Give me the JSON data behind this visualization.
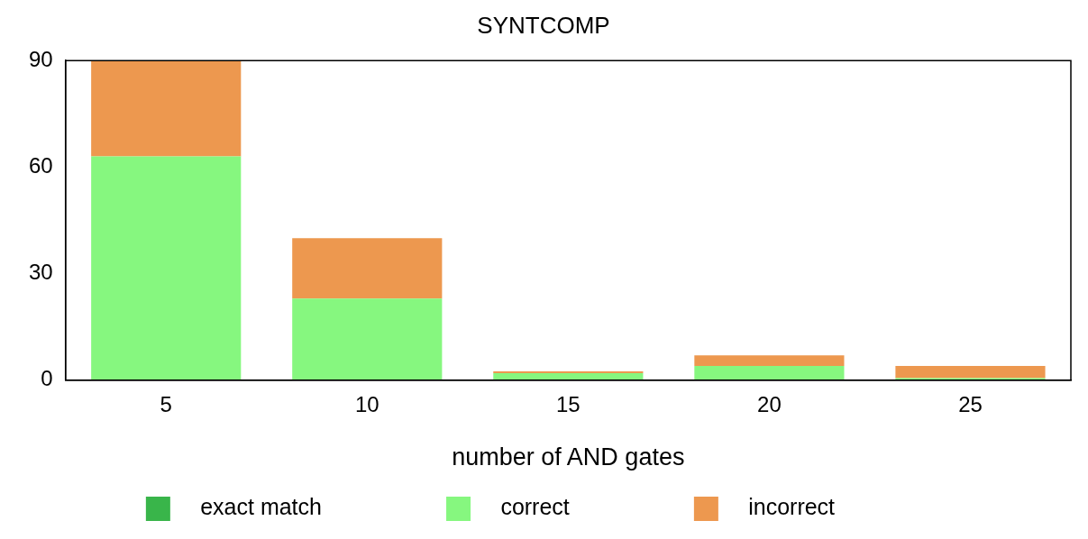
{
  "chart_data": {
    "type": "bar",
    "title": "SYNTCOMP",
    "xlabel": "number of AND gates",
    "categories": [
      "5",
      "10",
      "15",
      "20",
      "25"
    ],
    "stacked": true,
    "ylim": [
      0,
      90
    ],
    "yticks": [
      0,
      30,
      60,
      90
    ],
    "grid": false,
    "legend": "bottom",
    "series": [
      {
        "name": "exact match",
        "color": "#39b54a",
        "values": [
          0,
          0,
          0,
          0,
          0
        ]
      },
      {
        "name": "correct",
        "color": "#86f77f",
        "values": [
          63,
          23,
          2,
          4,
          0.6
        ]
      },
      {
        "name": "incorrect",
        "color": "#ed984f",
        "values": [
          27,
          17,
          0.5,
          3,
          3.4
        ]
      }
    ]
  }
}
